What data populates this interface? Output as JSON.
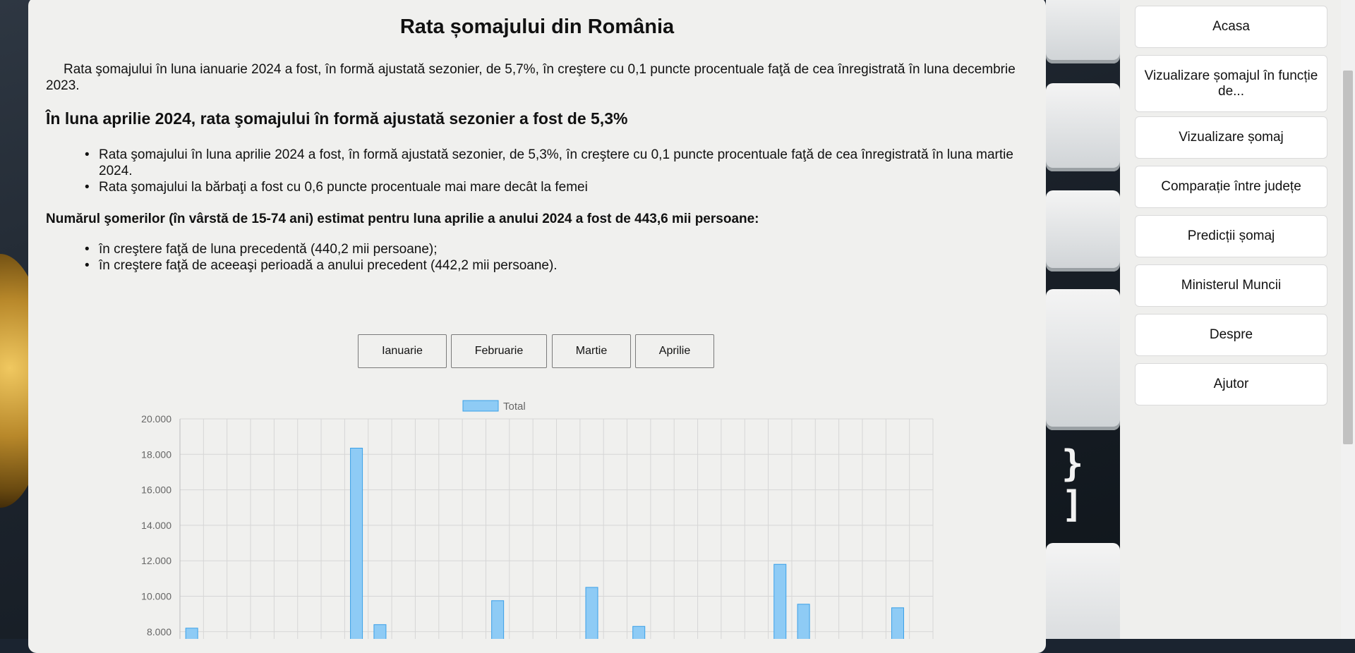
{
  "page": {
    "title": "Rata șomajului din România",
    "intro": "Rata şomajului în luna ianuarie 2024 a fost, în formă ajustată sezonier, de 5,7%, în creştere cu 0,1 puncte procentuale faţă de cea înregistrată în luna decembrie 2023.",
    "subtitle": "În luna aprilie 2024, rata şomajului în formă ajustată sezonier a fost de 5,3%",
    "bullets1": [
      "Rata şomajului în luna aprilie 2024 a fost, în formă ajustată sezonier, de 5,3%, în creştere cu 0,1 puncte procentuale faţă de cea înregistrată în luna martie 2024.",
      "Rata şomajului la bărbaţi a fost cu 0,6 puncte procentuale mai mare decât la femei"
    ],
    "subheading2": "Numărul şomerilor (în vârstă de 15-74 ani) estimat pentru luna aprilie a anului 2024 a fost de 443,6 mii persoane:",
    "bullets2": [
      "în creştere faţă de luna precedentă (440,2 mii persoane);",
      "în creştere faţă de aceeaşi perioadă a anului precedent (442,2 mii persoane)."
    ]
  },
  "month_buttons": [
    "Ianuarie",
    "Februarie",
    "Martie",
    "Aprilie"
  ],
  "sidebar": {
    "items": [
      "Acasa",
      "Vizualizare șomajul în funcție de...",
      "Vizualizare șomaj",
      "Comparație între județe",
      "Predicții șomaj",
      "Ministerul Muncii",
      "Despre",
      "Ajutor"
    ]
  },
  "chart_data": {
    "type": "bar",
    "legend": [
      "Total"
    ],
    "y_ticks": [
      "20.000",
      "18.000",
      "16.000",
      "14.000",
      "12.000",
      "10.000",
      "8.000"
    ],
    "ylim": [
      8000,
      20000
    ],
    "grid": true,
    "legend_position": "top",
    "colors": {
      "fill": "#8ecbf5",
      "stroke": "#3aa0e8",
      "grid": "#d6d6d6",
      "tick": "#666666"
    },
    "series": [
      {
        "name": "Total",
        "values": [
          8200,
          null,
          null,
          null,
          null,
          null,
          null,
          18350,
          8400,
          null,
          null,
          null,
          null,
          9750,
          null,
          null,
          null,
          10500,
          null,
          8300,
          null,
          null,
          null,
          null,
          null,
          11800,
          9550,
          null,
          null,
          null,
          9350,
          null
        ]
      }
    ],
    "visible_range_note_hidden": true
  },
  "background": {
    "key_glyphs": [
      "}",
      "]"
    ]
  }
}
